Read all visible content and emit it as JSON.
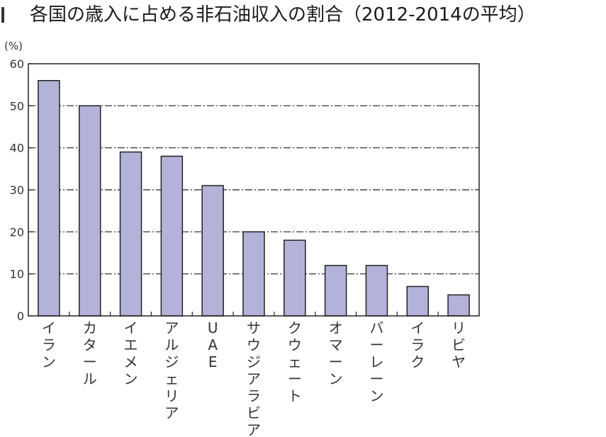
{
  "title": "各国の歳入に占める非石油収入の割合（2012-2014の平均）",
  "chart_data": {
    "type": "bar",
    "title": "各国の歳入に占める非石油収入の割合（2012-2014の平均）",
    "ylabel": "(%)",
    "xlabel": "",
    "ylim": [
      0,
      60
    ],
    "yticks": [
      "0",
      "10",
      "20",
      "30",
      "40",
      "50",
      "60"
    ],
    "grid": true,
    "categories": [
      "イラン",
      "カタール",
      "イエメン",
      "アルジェリア",
      "UAE",
      "サウジアラビア",
      "クウェート",
      "オマーン",
      "バーレーン",
      "イラク",
      "リビヤ"
    ],
    "values": [
      56,
      50,
      39,
      38,
      31,
      20,
      18,
      12,
      12,
      7,
      5
    ],
    "colors": {
      "bar_fill": "#b3b3d9",
      "bar_stroke": "#222222",
      "grid": "#222222"
    }
  }
}
